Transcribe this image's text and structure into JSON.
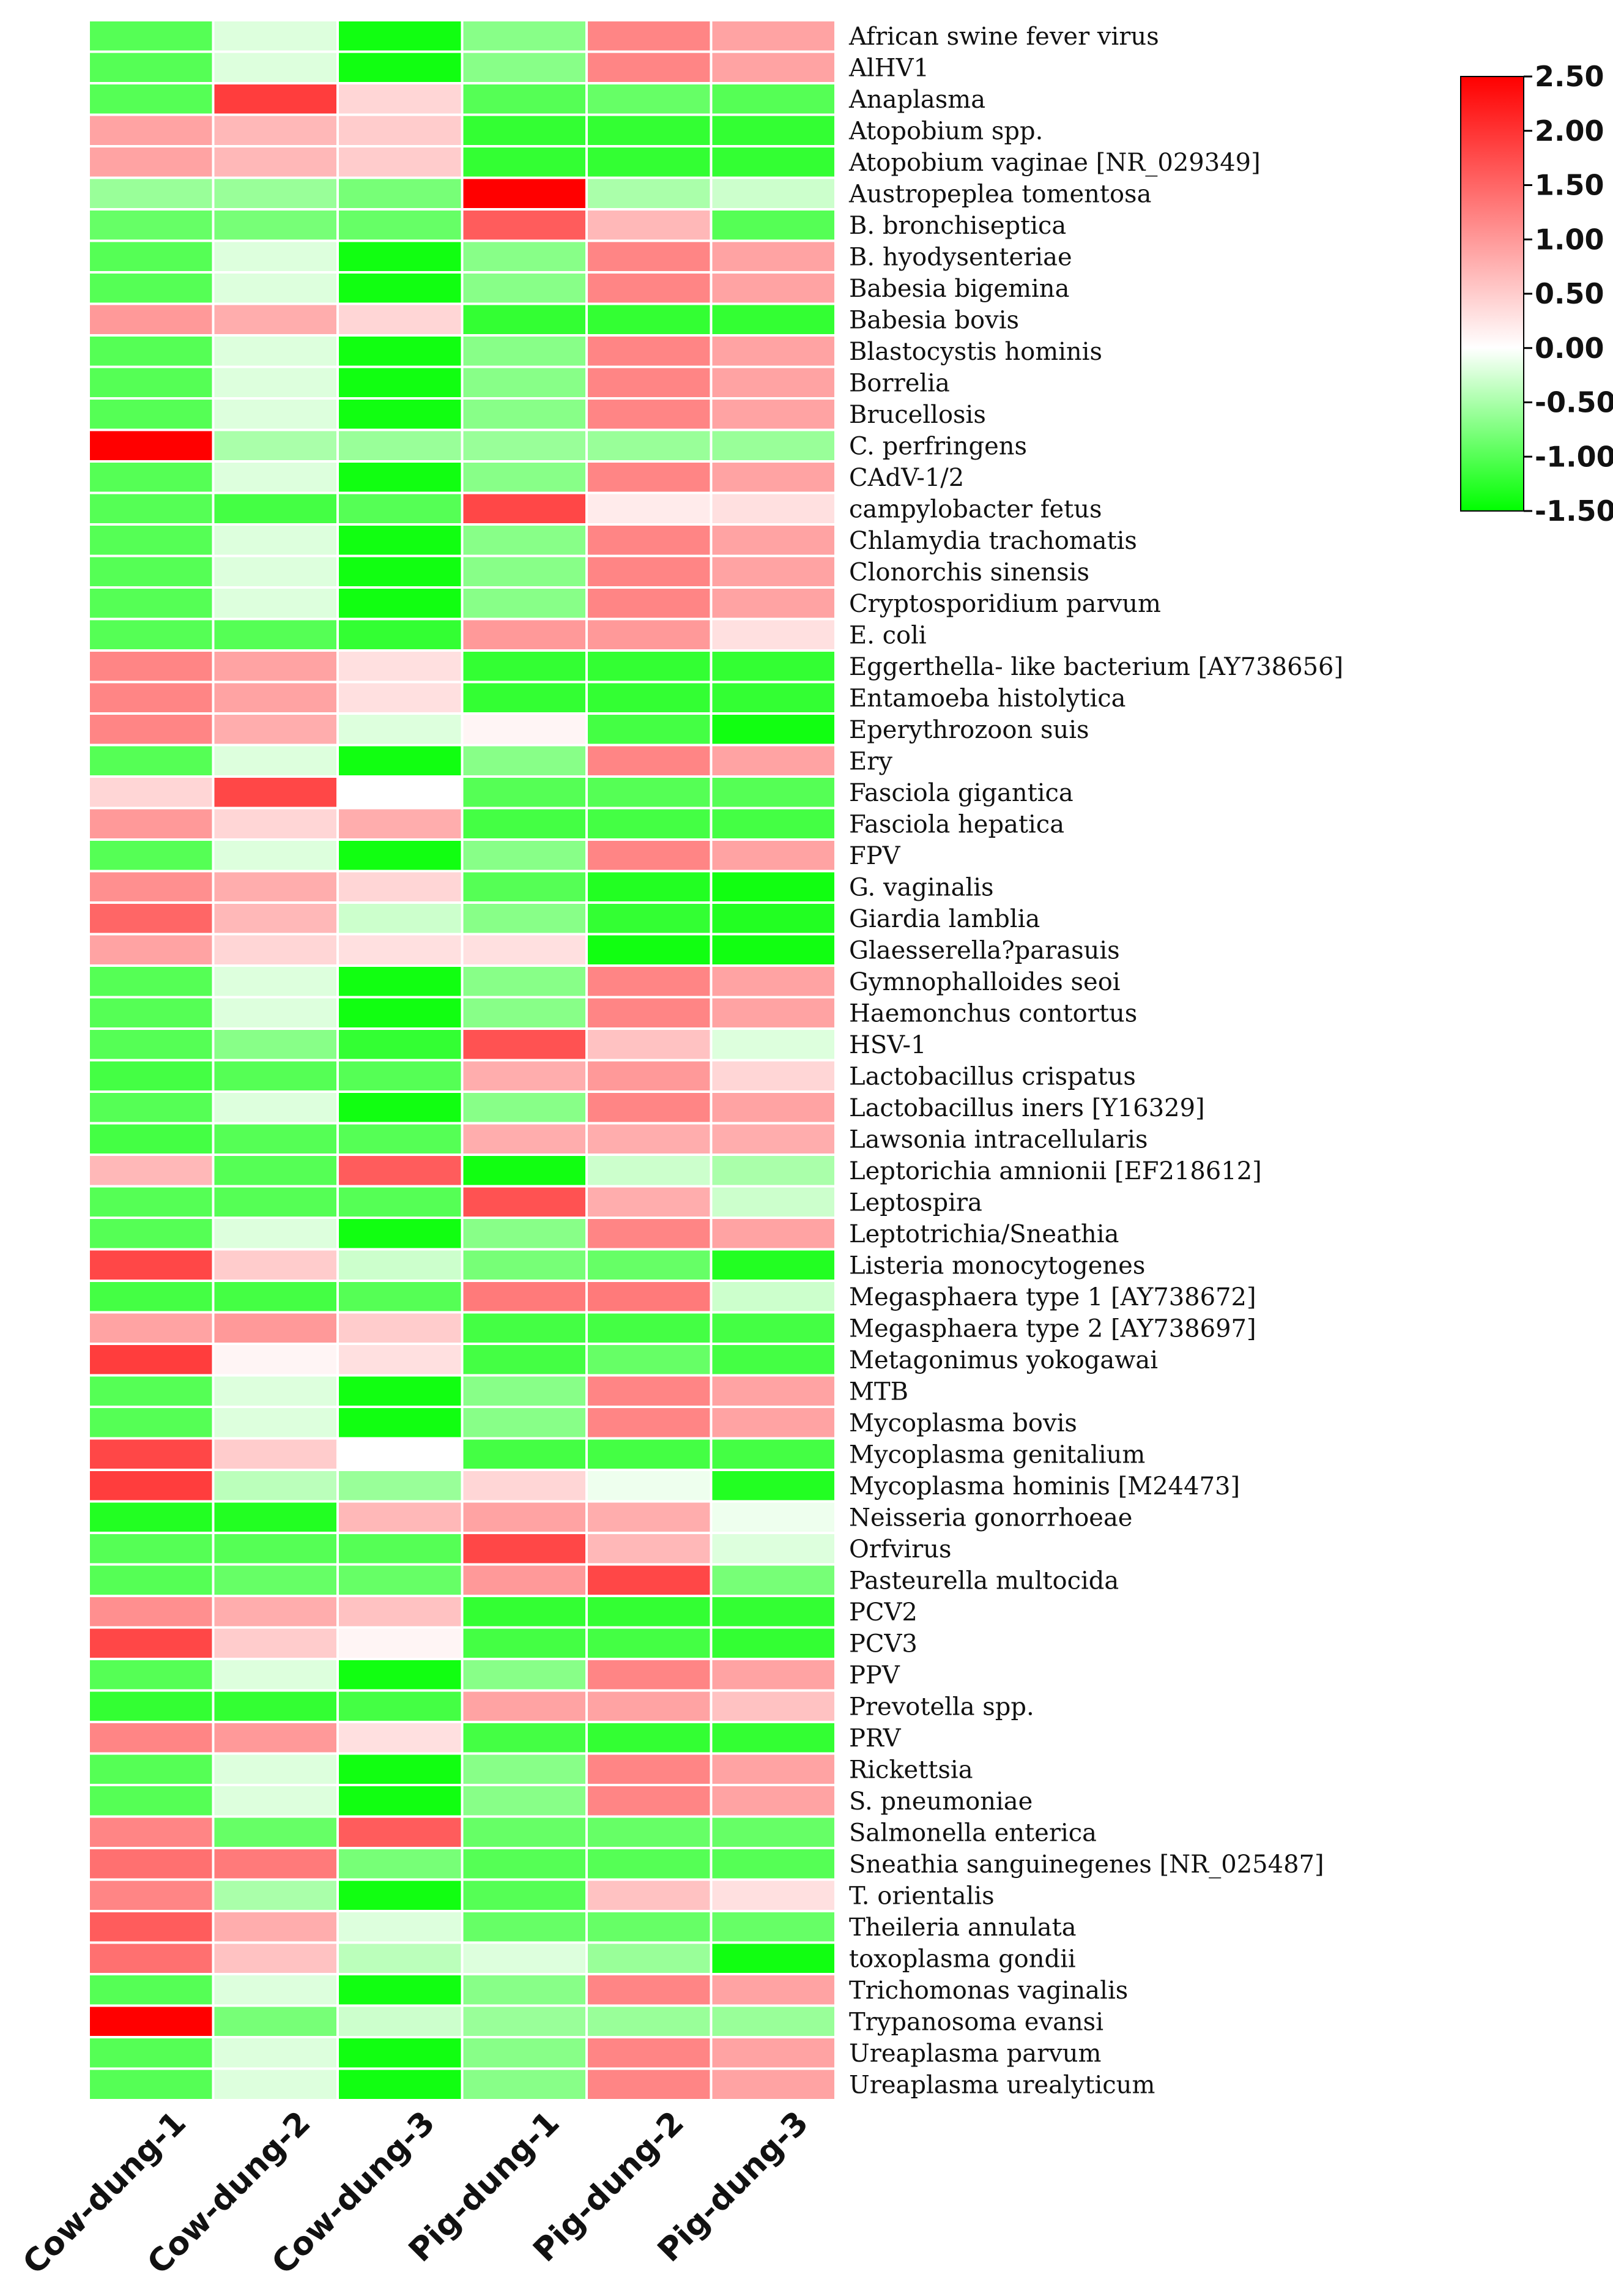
{
  "chart_data": {
    "type": "heatmap",
    "columns": [
      "Cow-dung-1",
      "Cow-dung-2",
      "Cow-dung-3",
      "Pig-dung-1",
      "Pig-dung-2",
      "Pig-dung-3"
    ],
    "rows": [
      "African swine fever virus",
      "AlHV1",
      "Anaplasma",
      "Atopobium spp.",
      "Atopobium vaginae [NR_029349]",
      "Austropeplea tomentosa",
      "B. bronchiseptica",
      "B. hyodysenteriae",
      "Babesia bigemina",
      "Babesia bovis",
      "Blastocystis hominis",
      "Borrelia",
      "Brucellosis",
      "C. perfringens",
      "CAdV-1/2",
      "campylobacter fetus",
      "Chlamydia trachomatis",
      "Clonorchis sinensis",
      "Cryptosporidium parvum",
      "E. coli",
      "Eggerthella- like  bacterium [AY738656]",
      "Entamoeba histolytica",
      "Eperythrozoon suis",
      "Ery",
      "Fasciola gigantica",
      "Fasciola hepatica",
      "FPV",
      "G. vaginalis",
      "Giardia lamblia",
      "Glaesserella?parasuis",
      "Gymnophalloides seoi",
      "Haemonchus contortus",
      "HSV-1",
      "Lactobacillus crispatus",
      "Lactobacillus iners [Y16329]",
      "Lawsonia intracellularis",
      "Leptorichia amnionii [EF218612]",
      "Leptospira",
      "Leptotrichia/Sneathia",
      "Listeria monocytogenes",
      "Megasphaera type 1 [AY738672]",
      "Megasphaera type 2 [AY738697]",
      "Metagonimus yokogawai",
      "MTB",
      "Mycoplasma bovis",
      "Mycoplasma genitalium",
      "Mycoplasma hominis [M24473]",
      "Neisseria gonorrhoeae",
      "Orfvirus",
      "Pasteurella multocida",
      "PCV2",
      "PCV3",
      "PPV",
      "Prevotella spp.",
      "PRV",
      "Rickettsia",
      "S. pneumoniae",
      "Salmonella enterica",
      "Sneathia sanguinegenes [NR_025487]",
      "T. orientalis",
      "Theileria annulata",
      "toxoplasma gondii",
      "Trichomonas vaginalis",
      "Trypanosoma evansi",
      "Ureaplasma parvum",
      "Ureaplasma urealyticum"
    ],
    "values": [
      [
        -1.0,
        -0.2,
        -1.4,
        -0.7,
        1.2,
        0.9
      ],
      [
        -1.0,
        -0.2,
        -1.4,
        -0.7,
        1.2,
        0.9
      ],
      [
        -1.0,
        1.9,
        0.4,
        -1.0,
        -0.9,
        -1.0
      ],
      [
        0.9,
        0.7,
        0.5,
        -1.2,
        -1.2,
        -1.2
      ],
      [
        0.9,
        0.7,
        0.5,
        -1.2,
        -1.2,
        -1.2
      ],
      [
        -0.6,
        -0.6,
        -0.8,
        2.5,
        -0.5,
        -0.3
      ],
      [
        -0.9,
        -0.8,
        -0.9,
        1.6,
        0.7,
        -1.0
      ],
      [
        -1.0,
        -0.2,
        -1.4,
        -0.7,
        1.2,
        0.9
      ],
      [
        -1.0,
        -0.2,
        -1.4,
        -0.7,
        1.2,
        0.9
      ],
      [
        1.0,
        0.8,
        0.4,
        -1.2,
        -1.2,
        -1.2
      ],
      [
        -1.0,
        -0.2,
        -1.4,
        -0.7,
        1.2,
        0.9
      ],
      [
        -1.0,
        -0.2,
        -1.4,
        -0.7,
        1.2,
        0.9
      ],
      [
        -1.0,
        -0.2,
        -1.4,
        -0.7,
        1.2,
        0.9
      ],
      [
        2.5,
        -0.5,
        -0.6,
        -0.6,
        -0.6,
        -0.6
      ],
      [
        -1.0,
        -0.2,
        -1.4,
        -0.7,
        1.2,
        0.9
      ],
      [
        -1.0,
        -1.1,
        -1.0,
        1.8,
        0.2,
        0.3
      ],
      [
        -1.0,
        -0.2,
        -1.4,
        -0.7,
        1.2,
        0.9
      ],
      [
        -1.0,
        -0.2,
        -1.4,
        -0.7,
        1.2,
        0.9
      ],
      [
        -1.0,
        -0.2,
        -1.4,
        -0.7,
        1.2,
        0.9
      ],
      [
        -1.0,
        -1.0,
        -1.2,
        1.0,
        1.0,
        0.3
      ],
      [
        1.2,
        0.9,
        0.3,
        -1.2,
        -1.2,
        -1.2
      ],
      [
        1.2,
        0.9,
        0.3,
        -1.2,
        -1.2,
        -1.2
      ],
      [
        1.2,
        0.8,
        -0.2,
        0.1,
        -1.1,
        -1.4
      ],
      [
        -1.0,
        -0.2,
        -1.4,
        -0.7,
        1.2,
        0.9
      ],
      [
        0.4,
        1.8,
        0.0,
        -1.0,
        -1.0,
        -1.0
      ],
      [
        1.0,
        0.4,
        0.8,
        -1.1,
        -1.1,
        -1.1
      ],
      [
        -1.0,
        -0.2,
        -1.4,
        -0.7,
        1.2,
        0.9
      ],
      [
        1.1,
        0.8,
        0.4,
        -1.0,
        -1.3,
        -1.4
      ],
      [
        1.5,
        0.7,
        -0.3,
        -0.7,
        -1.2,
        -1.3
      ],
      [
        0.9,
        0.4,
        0.3,
        0.3,
        -1.4,
        -1.4
      ],
      [
        -1.0,
        -0.2,
        -1.4,
        -0.7,
        1.2,
        0.9
      ],
      [
        -1.0,
        -0.2,
        -1.4,
        -0.7,
        1.2,
        0.9
      ],
      [
        -1.0,
        -0.7,
        -1.2,
        1.7,
        0.6,
        -0.2
      ],
      [
        -1.1,
        -1.0,
        -1.0,
        0.8,
        1.0,
        0.4
      ],
      [
        -1.0,
        -0.2,
        -1.4,
        -0.7,
        1.2,
        0.9
      ],
      [
        -1.1,
        -1.0,
        -1.0,
        0.8,
        0.8,
        0.8
      ],
      [
        0.7,
        -1.0,
        1.6,
        -1.4,
        -0.3,
        -0.5
      ],
      [
        -1.0,
        -1.0,
        -1.0,
        1.7,
        0.8,
        -0.3
      ],
      [
        -1.0,
        -0.2,
        -1.4,
        -0.7,
        1.2,
        0.9
      ],
      [
        1.8,
        0.5,
        -0.3,
        -0.8,
        -0.9,
        -1.3
      ],
      [
        -1.1,
        -1.1,
        -1.0,
        1.3,
        1.3,
        -0.3
      ],
      [
        0.9,
        1.0,
        0.5,
        -1.1,
        -1.1,
        -1.1
      ],
      [
        1.9,
        0.1,
        0.3,
        -1.1,
        -0.9,
        -1.1
      ],
      [
        -1.0,
        -0.2,
        -1.4,
        -0.7,
        1.2,
        0.9
      ],
      [
        -1.0,
        -0.2,
        -1.4,
        -0.7,
        1.2,
        0.9
      ],
      [
        1.8,
        0.5,
        0.0,
        -1.1,
        -1.1,
        -1.1
      ],
      [
        1.9,
        -0.4,
        -0.6,
        0.4,
        -0.1,
        -1.3
      ],
      [
        -1.3,
        -1.3,
        0.7,
        0.9,
        0.8,
        -0.1
      ],
      [
        -1.0,
        -1.0,
        -1.0,
        1.8,
        0.7,
        -0.2
      ],
      [
        -1.0,
        -0.9,
        -0.9,
        1.0,
        1.8,
        -0.8
      ],
      [
        1.1,
        0.8,
        0.6,
        -1.2,
        -1.2,
        -1.2
      ],
      [
        1.8,
        0.5,
        0.1,
        -1.1,
        -1.1,
        -1.2
      ],
      [
        -1.0,
        -0.2,
        -1.4,
        -0.7,
        1.2,
        0.9
      ],
      [
        -1.2,
        -1.2,
        -1.1,
        0.9,
        0.9,
        0.6
      ],
      [
        1.2,
        1.0,
        0.3,
        -1.1,
        -1.2,
        -1.2
      ],
      [
        -1.0,
        -0.2,
        -1.4,
        -0.7,
        1.2,
        0.9
      ],
      [
        -1.0,
        -0.2,
        -1.4,
        -0.7,
        1.2,
        0.9
      ],
      [
        1.2,
        -0.9,
        1.6,
        -0.9,
        -0.9,
        -0.9
      ],
      [
        1.4,
        1.3,
        -0.8,
        -1.0,
        -1.0,
        -1.0
      ],
      [
        1.2,
        -0.5,
        -1.4,
        -1.0,
        0.6,
        0.3
      ],
      [
        1.6,
        0.8,
        -0.2,
        -0.9,
        -0.9,
        -0.9
      ],
      [
        1.4,
        0.6,
        -0.4,
        -0.2,
        -0.6,
        -1.4
      ],
      [
        -1.0,
        -0.2,
        -1.4,
        -0.7,
        1.2,
        0.9
      ],
      [
        2.5,
        -0.8,
        -0.3,
        -0.6,
        -0.6,
        -0.6
      ],
      [
        -1.0,
        -0.2,
        -1.4,
        -0.7,
        1.2,
        0.9
      ],
      [
        -1.0,
        -0.2,
        -1.4,
        -0.7,
        1.2,
        0.9
      ]
    ],
    "colorscale": {
      "min": -1.5,
      "mid": 0.0,
      "max": 2.5,
      "min_color": "#00ff00",
      "mid_color": "#ffffff",
      "max_color": "#ff0000"
    },
    "legend_ticks": [
      "2.50",
      "2.00",
      "1.50",
      "1.00",
      "0.50",
      "0.00",
      "-0.50",
      "-1.00",
      "-1.50"
    ],
    "legend_placement": "top-right",
    "grid_line_color": "#ffffff"
  }
}
